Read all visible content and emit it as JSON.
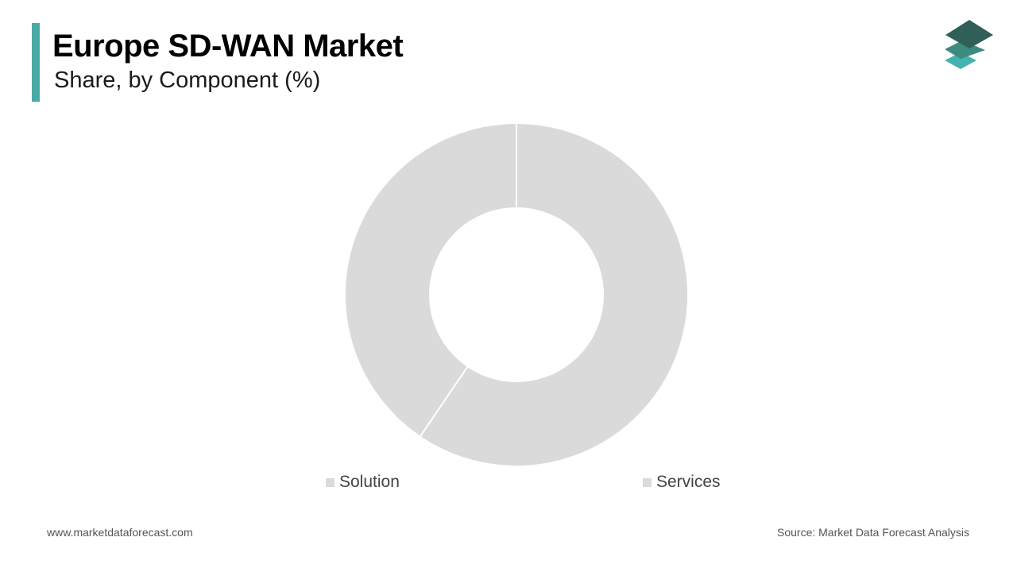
{
  "header": {
    "title": "Europe SD-WAN Market",
    "subtitle": "Share, by Component (%)"
  },
  "colors": {
    "accent": "#4aa9a5",
    "slice": "#dadada",
    "divider": "#ffffff",
    "logo_top": "#2f5f57",
    "logo_mid": "#3d8a80",
    "logo_bottom": "#45b3ad"
  },
  "logo": {
    "icon": "stacked-layers-logo-icon"
  },
  "chart_data": {
    "type": "pie",
    "donut": true,
    "title": "Europe SD-WAN Market",
    "subtitle": "Share, by Component (%)",
    "categories": [
      "Services",
      "Solution"
    ],
    "values": [
      59.5,
      40.5
    ],
    "unit": "%",
    "legend_position": "bottom",
    "legend": [
      "Solution",
      "Services"
    ]
  },
  "legend": {
    "items": [
      {
        "label": "Solution"
      },
      {
        "label": "Services"
      }
    ]
  },
  "footer": {
    "website": "www.marketdataforecast.com",
    "source": "Source: Market Data Forecast Analysis"
  }
}
